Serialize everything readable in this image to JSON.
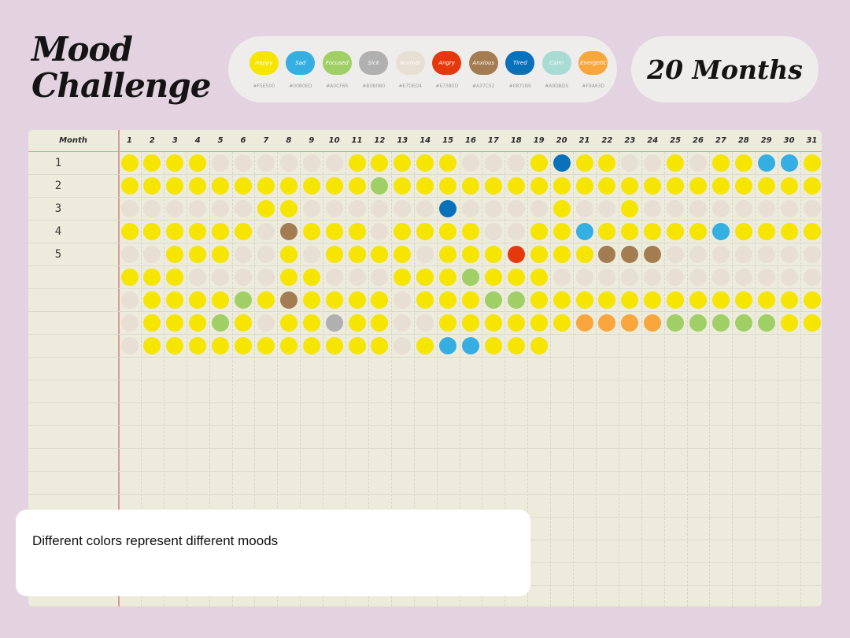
{
  "title": {
    "line1": "Mood",
    "line2": "Challenge"
  },
  "badge": {
    "months_label": "20 Months"
  },
  "legend": [
    {
      "label": "Happy",
      "hex": "#F5E500",
      "color": "#F5E500"
    },
    {
      "label": "Sad",
      "hex": "#00B0ED",
      "color": "#35AEE2"
    },
    {
      "label": "Focused",
      "hex": "#A0CF65",
      "color": "#A0CF65"
    },
    {
      "label": "Sick",
      "hex": "#B0B0B0",
      "color": "#B0B0B0"
    },
    {
      "label": "Normal",
      "hex": "#E7DED4",
      "color": "#E7DED4"
    },
    {
      "label": "Angry",
      "hex": "#E7380D",
      "color": "#E7380D"
    },
    {
      "label": "Anxious",
      "hex": "#A37C52",
      "color": "#A37C52"
    },
    {
      "label": "Tired",
      "hex": "#0871B9",
      "color": "#0871B9"
    },
    {
      "label": "Calm",
      "hex": "#A9DBD5",
      "color": "#A9DBD5"
    },
    {
      "label": "Energetic",
      "hex": "#F9A63D",
      "color": "#F9A63D"
    }
  ],
  "grid": {
    "header_label": "Month",
    "days": [
      "1",
      "2",
      "3",
      "4",
      "5",
      "6",
      "7",
      "8",
      "9",
      "10",
      "11",
      "12",
      "13",
      "14",
      "15",
      "16",
      "17",
      "18",
      "19",
      "20",
      "21",
      "22",
      "23",
      "24",
      "25",
      "26",
      "27",
      "28",
      "29",
      "30",
      "31"
    ],
    "mood_codes": {
      "H": "Happy",
      "S": "Sad",
      "F": "Focused",
      "K": "Sick",
      "N": "Normal",
      "A": "Angry",
      "X": "Anxious",
      "T": "Tired",
      "E": "Energetic"
    },
    "rows": [
      {
        "label": "1",
        "moods": "HHHHNNNNNNHHHHHNNNHTHHNNHNHHSSH"
      },
      {
        "label": "2",
        "moods": "HHHHHHHHHHHFHHHHHHHHHHHHHHHHHHH"
      },
      {
        "label": "3",
        "moods": "NNNNNNHHNNNNNNTNNNNHNNHNNNNNNNN"
      },
      {
        "label": "4",
        "moods": "HHHHHHNXHHHNHHHHNNHHSHHHHHSHHHH"
      },
      {
        "label": "5",
        "moods": "NNHHHNNHNHHHHNHHHAHHHXXXNNNNNNN"
      },
      {
        "label": "",
        "moods": "HHHNNNNHHNNNHHHFHHHNNNNNNNNNNNN"
      },
      {
        "label": "",
        "moods": "NHHHHFHXHHHHNHHHFFHHHHHHHHHHHHH"
      },
      {
        "label": "",
        "moods": "NHHHFHNHHKHHNNHHHHHHEEEEFFFFFHH"
      },
      {
        "label": "",
        "moods": "NHHHHHHHHHHHNHSSHHH"
      }
    ]
  },
  "note": {
    "text": "Different colors represent different moods"
  }
}
